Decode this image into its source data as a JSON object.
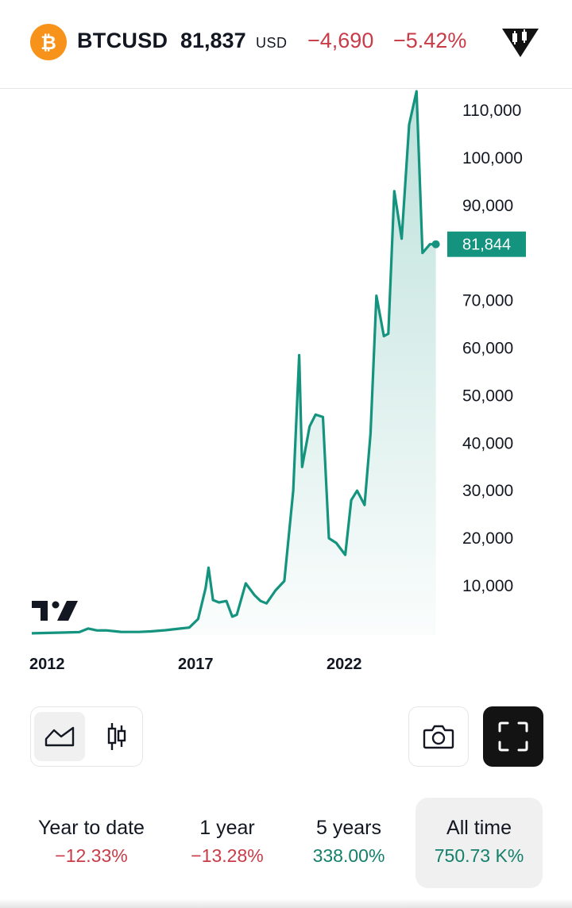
{
  "header": {
    "symbol": "BTCUSD",
    "price": "81,837",
    "currency": "USD",
    "change": "−4,690",
    "change_pct": "−5.42%",
    "coin_icon": "bitcoin-icon",
    "badge_icon": "candlestick-diamond-icon"
  },
  "chart": {
    "last_value": "81,844",
    "watermark_icon": "tradingview-logo-icon"
  },
  "chart_data": {
    "type": "area",
    "title": "",
    "xlabel": "",
    "ylabel": "",
    "x_tick_labels": [
      "2012",
      "2017",
      "2022"
    ],
    "y_tick_labels": [
      "10,000",
      "20,000",
      "30,000",
      "40,000",
      "50,000",
      "60,000",
      "70,000",
      "80,000",
      "90,000",
      "100,000",
      "110,000"
    ],
    "y_ticks": [
      10000,
      20000,
      30000,
      40000,
      50000,
      60000,
      70000,
      80000,
      90000,
      100000,
      110000
    ],
    "xlim": [
      2011.9,
      2026.9
    ],
    "ylim": [
      0,
      111000
    ],
    "last_value": 81844,
    "grid": false,
    "series": [
      {
        "x": [
          2012.0,
          2013.0,
          2013.6,
          2013.9,
          2014.2,
          2014.5,
          2015.0,
          2015.6,
          2016.0,
          2016.5,
          2017.0,
          2017.3,
          2017.6,
          2017.85,
          2017.95,
          2018.1,
          2018.3,
          2018.55,
          2018.75,
          2018.9,
          2019.2,
          2019.5,
          2019.7,
          2019.9,
          2020.2,
          2020.5,
          2020.8,
          2021.0,
          2021.1,
          2021.35,
          2021.55,
          2021.8,
          2022.0,
          2022.25,
          2022.55,
          2022.75,
          2022.95,
          2023.2,
          2023.4,
          2023.6,
          2023.85,
          2024.0,
          2024.2,
          2024.45,
          2024.7,
          2024.95,
          2025.15,
          2025.4,
          2025.6
        ],
        "y": [
          5,
          150,
          250,
          1000,
          600,
          620,
          300,
          280,
          400,
          650,
          1000,
          1200,
          3000,
          9500,
          13800,
          7000,
          6500,
          6800,
          3500,
          3900,
          10500,
          8000,
          6800,
          6300,
          9000,
          11000,
          30000,
          58500,
          35000,
          43500,
          46000,
          45500,
          20000,
          19000,
          16500,
          28000,
          30000,
          27000,
          42000,
          71000,
          62500,
          63000,
          93000,
          83000,
          107000,
          114000,
          80000,
          81844,
          81844
        ]
      }
    ]
  },
  "toolbar": {
    "area_icon": "area-chart-icon",
    "candle_icon": "candlestick-icon",
    "camera_icon": "camera-icon",
    "fullscreen_icon": "fullscreen-icon"
  },
  "periods": [
    {
      "label": "Year to date",
      "value": "−12.33%",
      "trend": "negative"
    },
    {
      "label": "1 year",
      "value": "−13.28%",
      "trend": "negative"
    },
    {
      "label": "5 years",
      "value": "338.00%",
      "trend": "positive"
    },
    {
      "label": "All time",
      "value": "750.73 K%",
      "trend": "positive"
    }
  ],
  "colors": {
    "line": "#14947f",
    "negative": "#c93b47",
    "positive": "#14806b",
    "coin": "#f7931a"
  }
}
